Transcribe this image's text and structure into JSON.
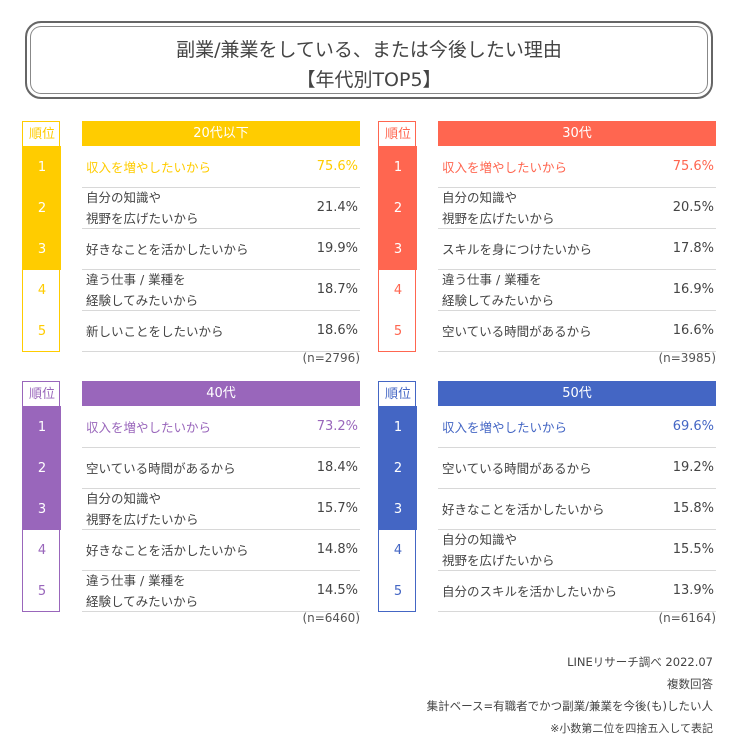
{
  "title": {
    "line1": "副業/兼業をしている、または今後したい理由",
    "line2": "【年代別TOP5】"
  },
  "rank_header": "順位",
  "chart_data": [
    {
      "type": "table",
      "category": "20代以下",
      "color": "#FFCC00",
      "n": "(n=2796)",
      "ranks": [
        "1",
        "2",
        "3",
        "4",
        "5"
      ],
      "reasons": [
        "収入を増やしたいから",
        "自分の知識や\n視野を広げたいから",
        "好きなことを活かしたいから",
        "違う仕事 / 業種を\n経験してみたいから",
        "新しいことをしたいから"
      ],
      "values": [
        "75.6%",
        "21.4%",
        "19.9%",
        "18.7%",
        "18.6%"
      ]
    },
    {
      "type": "table",
      "category": "30代",
      "color": "#FF6650",
      "n": "(n=3985)",
      "ranks": [
        "1",
        "2",
        "3",
        "4",
        "5"
      ],
      "reasons": [
        "収入を増やしたいから",
        "自分の知識や\n視野を広げたいから",
        "スキルを身につけたいから",
        "違う仕事 / 業種を\n経験してみたいから",
        "空いている時間があるから"
      ],
      "values": [
        "75.6%",
        "20.5%",
        "17.8%",
        "16.9%",
        "16.6%"
      ]
    },
    {
      "type": "table",
      "category": "40代",
      "color": "#9966BB",
      "n": "(n=6460)",
      "ranks": [
        "1",
        "2",
        "3",
        "4",
        "5"
      ],
      "reasons": [
        "収入を増やしたいから",
        "空いている時間があるから",
        "自分の知識や\n視野を広げたいから",
        "好きなことを活かしたいから",
        "違う仕事 / 業種を\n経験してみたいから"
      ],
      "values": [
        "73.2%",
        "18.4%",
        "15.7%",
        "14.8%",
        "14.5%"
      ]
    },
    {
      "type": "table",
      "category": "50代",
      "color": "#4466C4",
      "n": "(n=6164)",
      "ranks": [
        "1",
        "2",
        "3",
        "4",
        "5"
      ],
      "reasons": [
        "収入を増やしたいから",
        "空いている時間があるから",
        "好きなことを活かしたいから",
        "自分の知識や\n視野を広げたいから",
        "自分のスキルを活かしたいから"
      ],
      "values": [
        "69.6%",
        "19.2%",
        "15.8%",
        "15.5%",
        "13.9%"
      ]
    }
  ],
  "footer": {
    "line1": "LINEリサーチ調べ 2022.07",
    "line2": "複数回答",
    "line3": "集計ベース=有職者でかつ副業/兼業を今後(も)したい人",
    "line4": "※小数第二位を四捨五入して表記"
  }
}
